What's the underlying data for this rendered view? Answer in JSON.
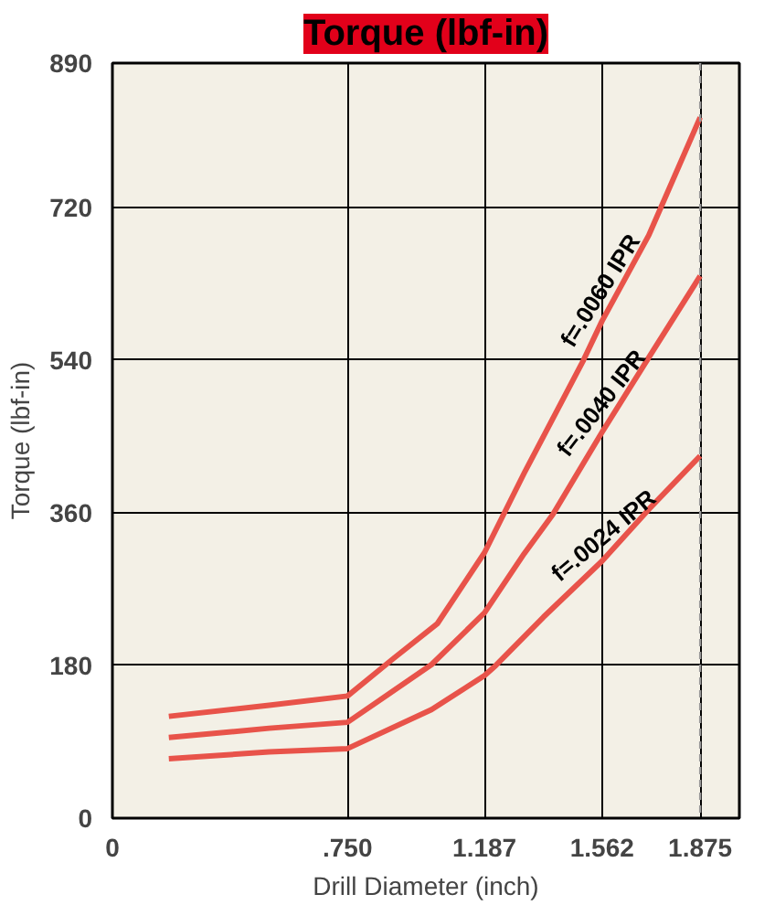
{
  "chart_data": {
    "type": "line",
    "title": "Torque (lbf-in)",
    "xlabel": "Drill Diameter (inch)",
    "ylabel": "Torque (lbf-in)",
    "xlim": [
      0,
      2.0
    ],
    "ylim": [
      0,
      890
    ],
    "xticks": [
      0,
      {
        "value": 0.75,
        "label": ".750"
      },
      {
        "value": 1.187,
        "label": "1.187"
      },
      {
        "value": 1.562,
        "label": "1.562"
      },
      {
        "value": 1.875,
        "label": "1.875"
      }
    ],
    "yticks": [
      0,
      180,
      360,
      540,
      720,
      890
    ],
    "grid": true,
    "line_style": "solid",
    "marker": "none",
    "series": [
      {
        "name": "f=.0060 IPR",
        "color": "#e8534a",
        "x": [
          0.18,
          0.5,
          0.75,
          0.896,
          1.036,
          1.187,
          1.314,
          1.503,
          1.562,
          1.711,
          1.875
        ],
        "values": [
          120,
          133,
          144,
          188,
          229,
          313,
          407,
          540,
          586,
          687,
          826
        ]
      },
      {
        "name": "f=.0040 IPR",
        "color": "#e8534a",
        "x": [
          0.18,
          0.5,
          0.75,
          0.896,
          1.018,
          1.187,
          1.314,
          1.405,
          1.562,
          1.711,
          1.875
        ],
        "values": [
          95,
          106,
          113,
          150,
          181,
          242,
          312,
          358,
          455,
          543,
          639
        ]
      },
      {
        "name": "f=.0024 IPR",
        "color": "#e8534a",
        "x": [
          0.18,
          0.5,
          0.75,
          1.018,
          1.187,
          1.223,
          1.375,
          1.562,
          1.711,
          1.875
        ],
        "values": [
          70,
          78,
          82,
          128,
          168,
          180,
          237,
          303,
          364,
          427
        ]
      }
    ],
    "ref_lines": [
      {
        "axis": "x",
        "value": 1.875,
        "color": "#999999",
        "line_style": "dashed"
      }
    ]
  }
}
